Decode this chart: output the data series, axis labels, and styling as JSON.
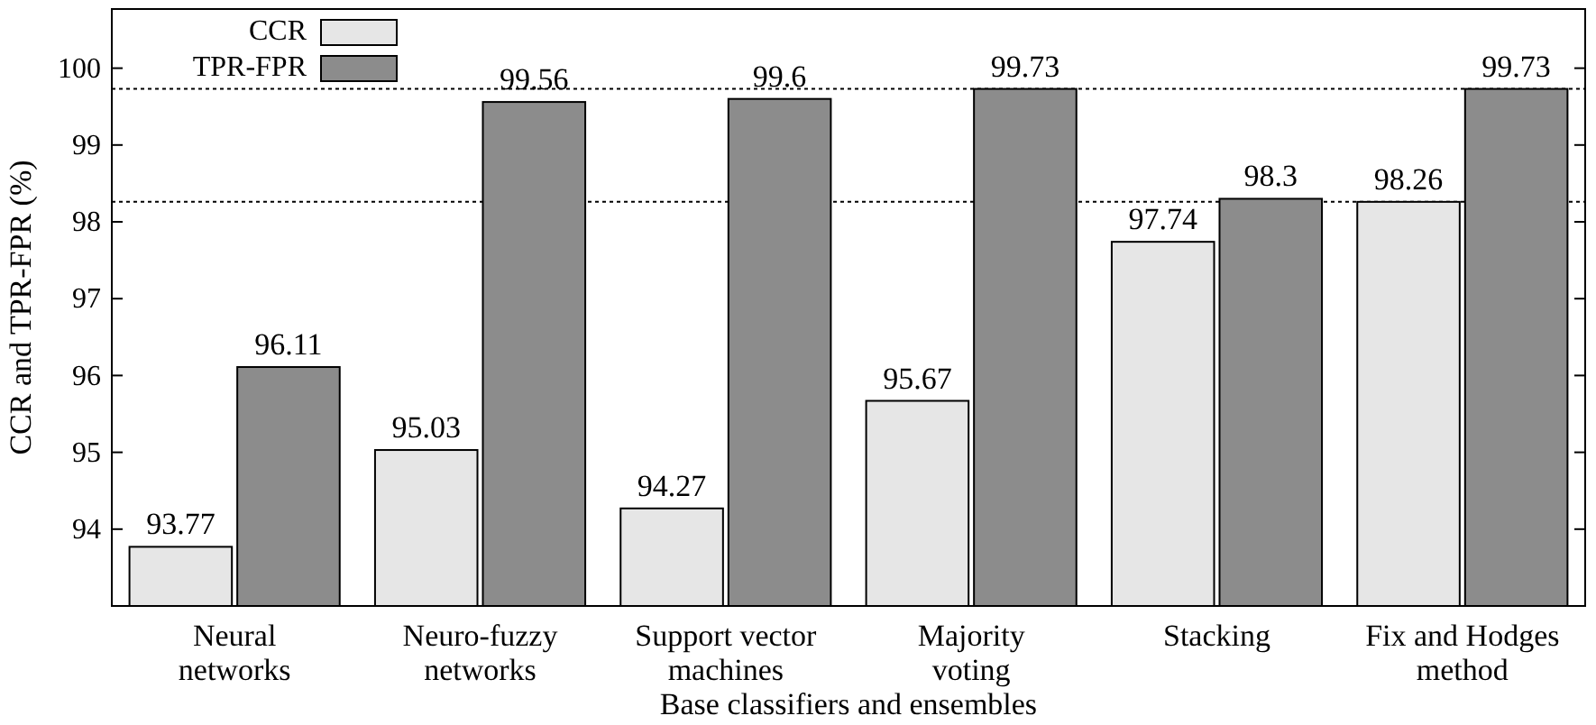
{
  "chart_data": {
    "type": "bar",
    "xlabel": "Base classifiers and ensembles",
    "ylabel": "CCR and TPR-FPR (%)",
    "categories": [
      "Neural\nnetworks",
      "Neuro-fuzzy\nnetworks",
      "Support vector\nmachines",
      "Majority\nvoting",
      "Stacking",
      "Fix and Hodges\nmethod"
    ],
    "series": [
      {
        "name": "CCR",
        "color": "#e6e6e6",
        "values": [
          93.77,
          95.03,
          94.27,
          95.67,
          97.74,
          98.26
        ]
      },
      {
        "name": "TPR-FPR",
        "color": "#8c8c8c",
        "values": [
          96.11,
          99.56,
          99.6,
          99.73,
          98.3,
          99.73
        ]
      }
    ],
    "ylim": [
      93,
      100.77
    ],
    "yticks": [
      94,
      95,
      96,
      97,
      98,
      99,
      100
    ],
    "data_labels": true,
    "legend": "top left",
    "ref_lines": [
      {
        "axis": "y",
        "value": 99.73,
        "line_style": "dotted"
      },
      {
        "axis": "y",
        "value": 98.26,
        "line_style": "dotted"
      }
    ]
  }
}
